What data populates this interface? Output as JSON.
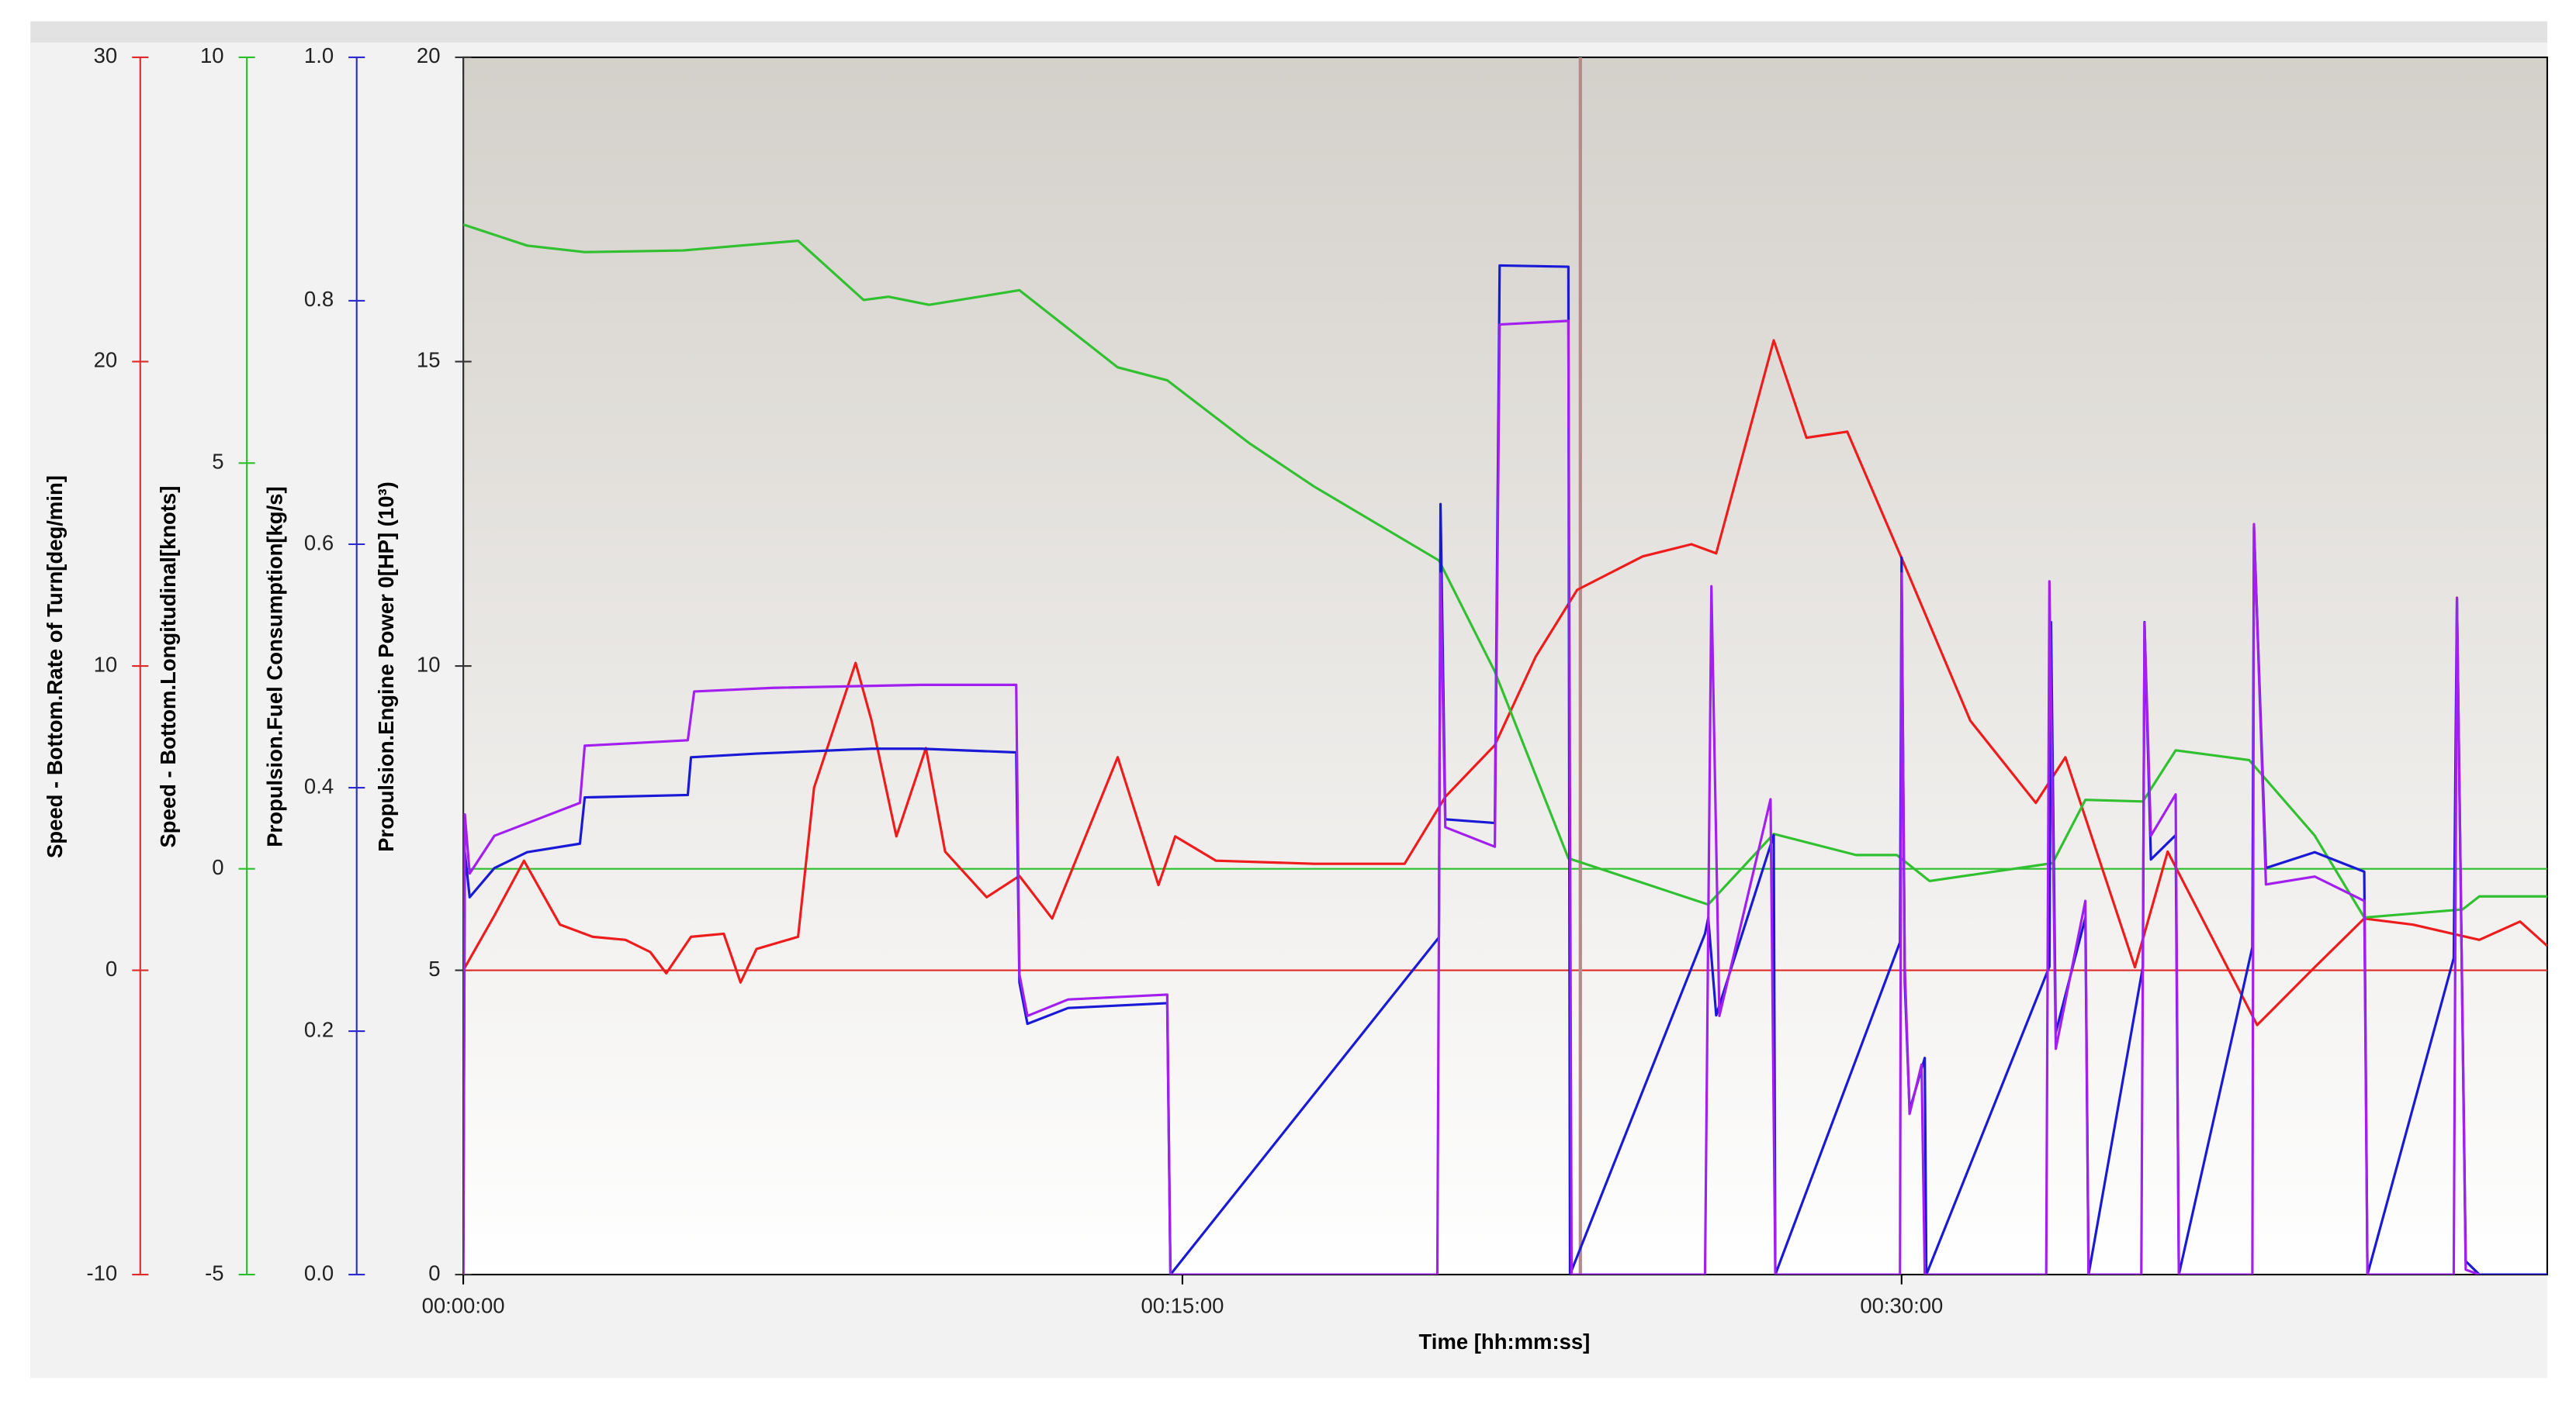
{
  "chart_data": {
    "type": "line",
    "x_label": "Time [hh:mm:ss]",
    "xlim": [
      0,
      2608
    ],
    "xticks": [
      {
        "value": 0,
        "label": "00:00:00"
      },
      {
        "value": 900,
        "label": "00:15:00"
      },
      {
        "value": 1800,
        "label": "00:30:00"
      }
    ],
    "cursor_x": 1398,
    "cursor_color": "#b48a8a",
    "axes": [
      {
        "label": "Speed - Bottom.Rate of Turn[deg/min]",
        "color": "#e02a2a",
        "ylim": [
          -10,
          30
        ],
        "yticks": [
          -10,
          0,
          10,
          20,
          30
        ],
        "zero_line": true
      },
      {
        "label": "Speed - Bottom.Longitudinal[knots]",
        "color": "#2cbf2c",
        "ylim": [
          -5,
          10
        ],
        "yticks": [
          -5,
          0,
          5,
          10
        ],
        "zero_line": true
      },
      {
        "label": "Propulsion.Fuel Consumption[kg/s]",
        "color": "#2a2ad0",
        "ylim": [
          0,
          1
        ],
        "yticks": [
          {
            "value": 0,
            "label": "0.0"
          },
          0.2,
          0.4,
          0.6,
          0.8,
          {
            "value": 1,
            "label": "1.0"
          }
        ],
        "zero_line": false
      },
      {
        "label": "Propulsion.Engine Power 0[HP] (10³)",
        "color": "#333333",
        "ylim": [
          0,
          20
        ],
        "yticks": [
          0,
          5,
          10,
          15,
          20
        ],
        "zero_line": false
      }
    ],
    "series": [
      {
        "color": "#ee1c1c",
        "axis": 0,
        "x": [
          0,
          39,
          76,
          121,
          162,
          203,
          234,
          254,
          285,
          326,
          347,
          367,
          419,
          439,
          491,
          511,
          542,
          579,
          603,
          655,
          696,
          737,
          819,
          870,
          891,
          942,
          1065,
          1178,
          1229,
          1291,
          1342,
          1394,
          1476,
          1537,
          1568,
          1640,
          1681,
          1732,
          1804,
          1886,
          1968,
          2005,
          2092,
          2133,
          2245,
          2317,
          2379,
          2440,
          2523,
          2574,
          2608
        ],
        "values": [
          0.0,
          1.8,
          3.6,
          1.5,
          1.1,
          1.0,
          0.6,
          -0.1,
          1.1,
          1.2,
          -0.4,
          0.7,
          1.1,
          6.0,
          10.1,
          8.2,
          4.4,
          7.3,
          3.9,
          2.4,
          3.1,
          1.7,
          7.0,
          2.8,
          4.4,
          3.6,
          3.5,
          3.5,
          5.7,
          7.4,
          10.3,
          12.5,
          13.6,
          14.0,
          13.7,
          20.7,
          17.5,
          17.7,
          13.3,
          8.2,
          5.5,
          7.0,
          0.1,
          3.9,
          -1.8,
          0.1,
          1.7,
          1.5,
          1.0,
          1.6,
          0.8
        ]
      },
      {
        "color": "#30c030",
        "axis": 1,
        "x": [
          0,
          80,
          152,
          275,
          419,
          501,
          532,
          583,
          696,
          819,
          881,
          983,
          1065,
          1221,
          1291,
          1383,
          1558,
          1640,
          1743,
          1794,
          1835,
          1989,
          2030,
          2102,
          2143,
          2235,
          2317,
          2379,
          2502,
          2523,
          2608
        ],
        "values": [
          7.94,
          7.68,
          7.6,
          7.62,
          7.74,
          7.01,
          7.05,
          6.95,
          7.13,
          6.18,
          6.02,
          5.25,
          4.71,
          3.8,
          2.43,
          0.13,
          -0.44,
          0.43,
          0.17,
          0.17,
          -0.15,
          0.07,
          0.85,
          0.83,
          1.46,
          1.34,
          0.41,
          -0.6,
          -0.5,
          -0.34,
          -0.34
        ]
      },
      {
        "color": "#1a1ad6",
        "axis": 2,
        "x": [
          0,
          2,
          8,
          39,
          80,
          146,
          152,
          281,
          285,
          367,
          511,
          573,
          692,
          696,
          706,
          757,
          881,
          885,
          1221,
          1223,
          1229,
          1291,
          1297,
          1383,
          1385,
          1554,
          1558,
          1568,
          1640,
          1642,
          1798,
          1800,
          1804,
          1810,
          1829,
          1831,
          1985,
          1987,
          1993,
          2030,
          2034,
          2102,
          2104,
          2112,
          2143,
          2147,
          2239,
          2241,
          2256,
          2317,
          2379,
          2383,
          2491,
          2495,
          2506,
          2523,
          2608
        ],
        "values": [
          0.0,
          0.347,
          0.31,
          0.334,
          0.347,
          0.354,
          0.392,
          0.394,
          0.425,
          0.428,
          0.432,
          0.432,
          0.429,
          0.24,
          0.206,
          0.219,
          0.223,
          0.0,
          0.277,
          0.633,
          0.374,
          0.371,
          0.829,
          0.828,
          0.0,
          0.28,
          0.293,
          0.213,
          0.361,
          0.0,
          0.273,
          0.589,
          0.24,
          0.135,
          0.178,
          0.0,
          0.253,
          0.536,
          0.199,
          0.293,
          0.0,
          0.253,
          0.536,
          0.341,
          0.361,
          0.0,
          0.269,
          0.614,
          0.334,
          0.347,
          0.331,
          0.0,
          0.26,
          0.556,
          0.011,
          0.0,
          0.0
        ]
      },
      {
        "color": "#a21ff0",
        "axis": 3,
        "x": [
          0,
          2,
          8,
          39,
          146,
          152,
          281,
          289,
          388,
          573,
          692,
          696,
          706,
          757,
          881,
          885,
          1219,
          1223,
          1229,
          1291,
          1297,
          1383,
          1387,
          1554,
          1562,
          1572,
          1636,
          1642,
          1798,
          1800,
          1804,
          1810,
          1825,
          1829,
          1981,
          1985,
          1993,
          2030,
          2034,
          2100,
          2104,
          2112,
          2143,
          2147,
          2239,
          2241,
          2256,
          2317,
          2379,
          2383,
          2491,
          2495,
          2506,
          2523
        ],
        "values": [
          0,
          7.56,
          6.59,
          7.21,
          7.75,
          8.69,
          8.78,
          9.58,
          9.64,
          9.69,
          9.69,
          4.93,
          4.25,
          4.52,
          4.6,
          0,
          0,
          11.52,
          7.35,
          7.03,
          15.61,
          15.67,
          0,
          0,
          11.31,
          4.25,
          7.81,
          0,
          0,
          11.52,
          5.06,
          2.64,
          3.45,
          0,
          0,
          11.39,
          3.71,
          6.14,
          0,
          0,
          10.71,
          7.21,
          7.89,
          0,
          0,
          12.33,
          6.41,
          6.54,
          6.14,
          0,
          0,
          11.12,
          0.08,
          0
        ]
      }
    ]
  }
}
